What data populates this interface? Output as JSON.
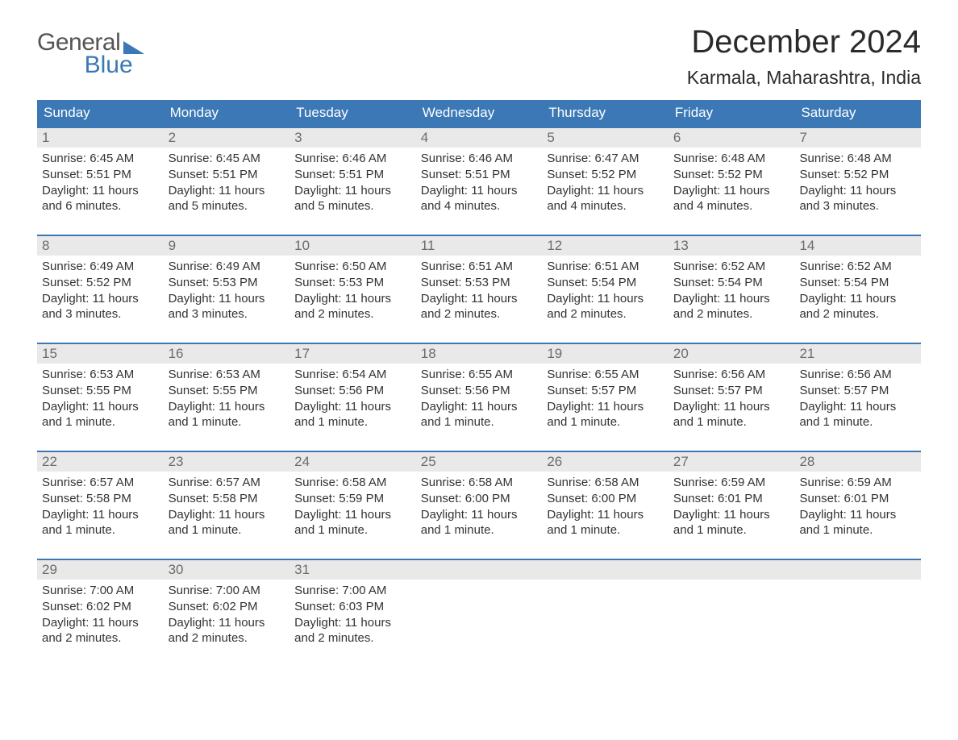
{
  "brand": {
    "text1": "General",
    "text2": "Blue"
  },
  "title": "December 2024",
  "location": "Karmala, Maharashtra, India",
  "colors": {
    "brand_blue": "#3b78b5",
    "header_bg": "#3b78b5",
    "daynum_bg": "#e9e9e9",
    "daynum_text": "#6c6c6c",
    "body_text": "#333333",
    "background": "#ffffff"
  },
  "day_headers": [
    "Sunday",
    "Monday",
    "Tuesday",
    "Wednesday",
    "Thursday",
    "Friday",
    "Saturday"
  ],
  "weeks": [
    [
      {
        "n": "1",
        "sunrise": "6:45 AM",
        "sunset": "5:51 PM",
        "daylight": "11 hours and 6 minutes."
      },
      {
        "n": "2",
        "sunrise": "6:45 AM",
        "sunset": "5:51 PM",
        "daylight": "11 hours and 5 minutes."
      },
      {
        "n": "3",
        "sunrise": "6:46 AM",
        "sunset": "5:51 PM",
        "daylight": "11 hours and 5 minutes."
      },
      {
        "n": "4",
        "sunrise": "6:46 AM",
        "sunset": "5:51 PM",
        "daylight": "11 hours and 4 minutes."
      },
      {
        "n": "5",
        "sunrise": "6:47 AM",
        "sunset": "5:52 PM",
        "daylight": "11 hours and 4 minutes."
      },
      {
        "n": "6",
        "sunrise": "6:48 AM",
        "sunset": "5:52 PM",
        "daylight": "11 hours and 4 minutes."
      },
      {
        "n": "7",
        "sunrise": "6:48 AM",
        "sunset": "5:52 PM",
        "daylight": "11 hours and 3 minutes."
      }
    ],
    [
      {
        "n": "8",
        "sunrise": "6:49 AM",
        "sunset": "5:52 PM",
        "daylight": "11 hours and 3 minutes."
      },
      {
        "n": "9",
        "sunrise": "6:49 AM",
        "sunset": "5:53 PM",
        "daylight": "11 hours and 3 minutes."
      },
      {
        "n": "10",
        "sunrise": "6:50 AM",
        "sunset": "5:53 PM",
        "daylight": "11 hours and 2 minutes."
      },
      {
        "n": "11",
        "sunrise": "6:51 AM",
        "sunset": "5:53 PM",
        "daylight": "11 hours and 2 minutes."
      },
      {
        "n": "12",
        "sunrise": "6:51 AM",
        "sunset": "5:54 PM",
        "daylight": "11 hours and 2 minutes."
      },
      {
        "n": "13",
        "sunrise": "6:52 AM",
        "sunset": "5:54 PM",
        "daylight": "11 hours and 2 minutes."
      },
      {
        "n": "14",
        "sunrise": "6:52 AM",
        "sunset": "5:54 PM",
        "daylight": "11 hours and 2 minutes."
      }
    ],
    [
      {
        "n": "15",
        "sunrise": "6:53 AM",
        "sunset": "5:55 PM",
        "daylight": "11 hours and 1 minute."
      },
      {
        "n": "16",
        "sunrise": "6:53 AM",
        "sunset": "5:55 PM",
        "daylight": "11 hours and 1 minute."
      },
      {
        "n": "17",
        "sunrise": "6:54 AM",
        "sunset": "5:56 PM",
        "daylight": "11 hours and 1 minute."
      },
      {
        "n": "18",
        "sunrise": "6:55 AM",
        "sunset": "5:56 PM",
        "daylight": "11 hours and 1 minute."
      },
      {
        "n": "19",
        "sunrise": "6:55 AM",
        "sunset": "5:57 PM",
        "daylight": "11 hours and 1 minute."
      },
      {
        "n": "20",
        "sunrise": "6:56 AM",
        "sunset": "5:57 PM",
        "daylight": "11 hours and 1 minute."
      },
      {
        "n": "21",
        "sunrise": "6:56 AM",
        "sunset": "5:57 PM",
        "daylight": "11 hours and 1 minute."
      }
    ],
    [
      {
        "n": "22",
        "sunrise": "6:57 AM",
        "sunset": "5:58 PM",
        "daylight": "11 hours and 1 minute."
      },
      {
        "n": "23",
        "sunrise": "6:57 AM",
        "sunset": "5:58 PM",
        "daylight": "11 hours and 1 minute."
      },
      {
        "n": "24",
        "sunrise": "6:58 AM",
        "sunset": "5:59 PM",
        "daylight": "11 hours and 1 minute."
      },
      {
        "n": "25",
        "sunrise": "6:58 AM",
        "sunset": "6:00 PM",
        "daylight": "11 hours and 1 minute."
      },
      {
        "n": "26",
        "sunrise": "6:58 AM",
        "sunset": "6:00 PM",
        "daylight": "11 hours and 1 minute."
      },
      {
        "n": "27",
        "sunrise": "6:59 AM",
        "sunset": "6:01 PM",
        "daylight": "11 hours and 1 minute."
      },
      {
        "n": "28",
        "sunrise": "6:59 AM",
        "sunset": "6:01 PM",
        "daylight": "11 hours and 1 minute."
      }
    ],
    [
      {
        "n": "29",
        "sunrise": "7:00 AM",
        "sunset": "6:02 PM",
        "daylight": "11 hours and 2 minutes."
      },
      {
        "n": "30",
        "sunrise": "7:00 AM",
        "sunset": "6:02 PM",
        "daylight": "11 hours and 2 minutes."
      },
      {
        "n": "31",
        "sunrise": "7:00 AM",
        "sunset": "6:03 PM",
        "daylight": "11 hours and 2 minutes."
      },
      {
        "n": "",
        "empty": true
      },
      {
        "n": "",
        "empty": true
      },
      {
        "n": "",
        "empty": true
      },
      {
        "n": "",
        "empty": true
      }
    ]
  ],
  "labels": {
    "sunrise_prefix": "Sunrise: ",
    "sunset_prefix": "Sunset: ",
    "daylight_prefix": "Daylight: "
  }
}
